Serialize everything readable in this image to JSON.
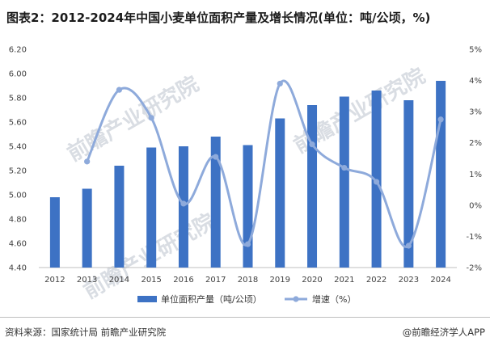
{
  "header": {
    "title": "图表2：2012-2024年中国小麦单位面积产量及增长情况(单位：吨/公顷，%)"
  },
  "footer": {
    "source": "资料来源：国家统计局 前瞻产业研究院",
    "brand": "@前瞻经济学人APP"
  },
  "watermark": {
    "text": "前瞻产业研究院"
  },
  "colors": {
    "bar": "#3d72c4",
    "line": "#8eaadb",
    "axis": "#bfbfbf"
  },
  "chart_data": {
    "type": "bar+line",
    "categories": [
      "2012",
      "2013",
      "2014",
      "2015",
      "2016",
      "2017",
      "2018",
      "2019",
      "2020",
      "2021",
      "2022",
      "2023",
      "2024"
    ],
    "series": [
      {
        "name": "单位面积产量（吨/公顷）",
        "type": "bar",
        "axis": "left",
        "values": [
          4.98,
          5.05,
          5.24,
          5.39,
          5.4,
          5.48,
          5.41,
          5.63,
          5.74,
          5.81,
          5.86,
          5.78,
          5.94
        ]
      },
      {
        "name": "增速（%）",
        "type": "line",
        "axis": "right",
        "values": [
          null,
          1.4,
          3.7,
          2.8,
          0.05,
          1.55,
          -1.25,
          3.9,
          1.95,
          1.2,
          0.75,
          -1.3,
          2.75
        ]
      }
    ],
    "y_left": {
      "min": 4.4,
      "max": 6.2,
      "ticks": [
        "4.40",
        "4.60",
        "4.80",
        "5.00",
        "5.20",
        "5.40",
        "5.60",
        "5.80",
        "6.00",
        "6.20"
      ]
    },
    "y_right": {
      "min": -2,
      "max": 5,
      "ticks": [
        "-2%",
        "-1%",
        "0%",
        "1%",
        "2%",
        "3%",
        "4%",
        "5%"
      ]
    },
    "legend": [
      "单位面积产量（吨/公顷）",
      "增速（%）"
    ],
    "legend_position": "bottom"
  }
}
